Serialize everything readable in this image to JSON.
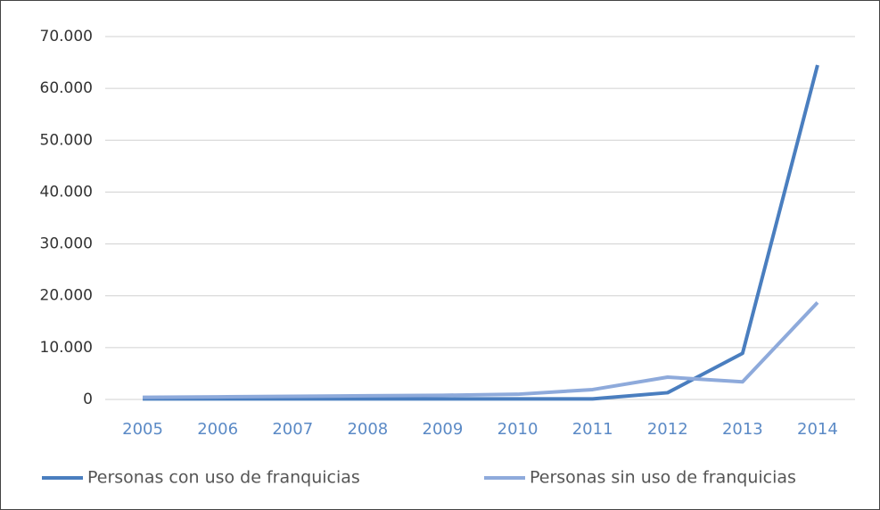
{
  "chart_data": {
    "type": "line",
    "categories": [
      "2005",
      "2006",
      "2007",
      "2008",
      "2009",
      "2010",
      "2011",
      "2012",
      "2013",
      "2014"
    ],
    "series": [
      {
        "name": "Personas con uso de franquicias",
        "color": "#4a7ebf",
        "values": [
          100,
          100,
          100,
          100,
          100,
          100,
          100,
          1300,
          8900,
          64500
        ]
      },
      {
        "name": "Personas sin uso de franquicias",
        "color": "#8eaadb",
        "values": [
          400,
          500,
          600,
          700,
          800,
          1000,
          1900,
          4300,
          3400,
          18700
        ]
      }
    ],
    "ylim": [
      0,
      70000
    ],
    "yticks": [
      0,
      {
        "value": 10000,
        "label": "10.000"
      },
      {
        "value": 20000,
        "label": "20.000"
      },
      {
        "value": 30000,
        "label": "30.000"
      },
      {
        "value": 40000,
        "label": "40.000"
      },
      {
        "value": 50000,
        "label": "50.000"
      },
      {
        "value": 60000,
        "label": "60.000"
      },
      {
        "value": 70000,
        "label": "70.000"
      }
    ],
    "grid": true,
    "legend": "bottom"
  }
}
